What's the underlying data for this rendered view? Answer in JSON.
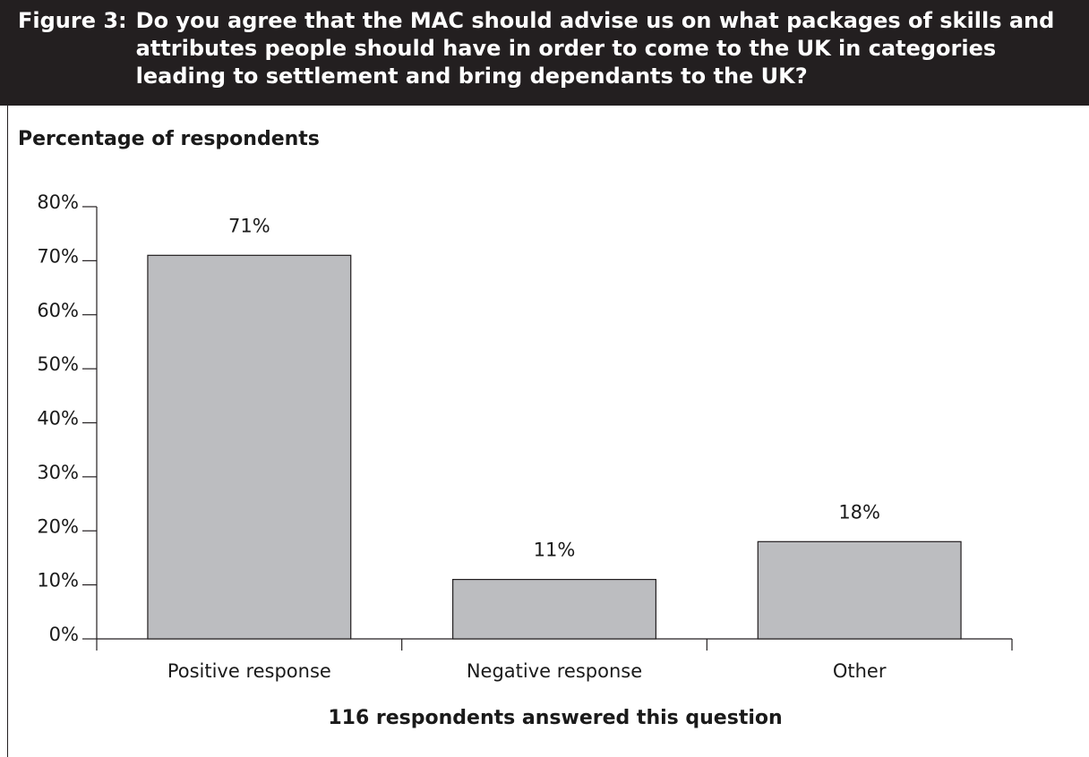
{
  "figure": {
    "label": "Figure 3:",
    "title": "Do you agree that the MAC should advise us on what packages of skills and attributes people should have in order to come to the UK in categories leading to settlement and bring dependants to the UK?"
  },
  "chart_data": {
    "type": "bar",
    "title": "Do you agree that the MAC should advise us on what packages of skills and attributes people should have in order to come to the UK in categories leading to settlement and bring dependants to the UK?",
    "ylabel": "Percentage of respondents",
    "xlabel": "116 respondents answered this question",
    "categories": [
      "Positive response",
      "Negative response",
      "Other"
    ],
    "values": [
      71,
      11,
      18
    ],
    "value_labels": [
      "71%",
      "11%",
      "18%"
    ],
    "ylim": [
      0,
      80
    ],
    "yticks": [
      0,
      10,
      20,
      30,
      40,
      50,
      60,
      70,
      80
    ],
    "ytick_labels": [
      "0%",
      "10%",
      "20%",
      "30%",
      "40%",
      "50%",
      "60%",
      "70%",
      "80%"
    ],
    "grid": false,
    "legend": "none",
    "bar_color": "#bcbdc0",
    "bar_stroke": "#231f20"
  },
  "colors": {
    "title_background": "#231f20",
    "title_text": "#ffffff",
    "axis": "#231f20",
    "text": "#1a1a1a"
  }
}
